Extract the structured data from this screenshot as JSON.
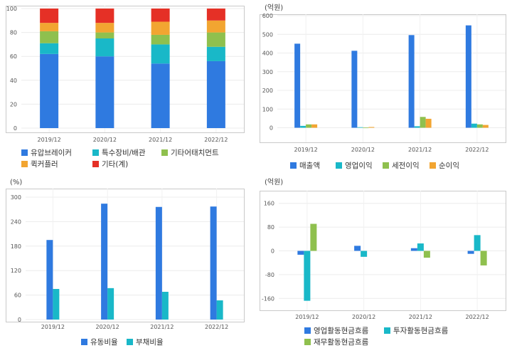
{
  "chart_data": [
    {
      "type": "bar",
      "stacked": true,
      "unit": "",
      "categories": [
        "2019/12",
        "2020/12",
        "2021/12",
        "2022/12"
      ],
      "ylim": [
        0,
        100
      ],
      "yticks": [
        0,
        20,
        40,
        60,
        80,
        100
      ],
      "grid": true,
      "legend_position": "bottom",
      "series": [
        {
          "name": "유압브레이커",
          "color": "#2f7ae0",
          "values": [
            62,
            60,
            54,
            56
          ]
        },
        {
          "name": "특수장비/배관",
          "color": "#19b8c8",
          "values": [
            9,
            15,
            16,
            12
          ]
        },
        {
          "name": "기타어태치먼트",
          "color": "#8fc04e",
          "values": [
            10,
            5,
            8,
            12
          ]
        },
        {
          "name": "퀵커플러",
          "color": "#f2a531",
          "values": [
            7,
            8,
            11,
            10
          ]
        },
        {
          "name": "기타(계)",
          "color": "#e53026",
          "values": [
            12,
            12,
            11,
            10
          ]
        }
      ]
    },
    {
      "type": "bar",
      "unit": "(억원)",
      "categories": [
        "2019/12",
        "2020/12",
        "2021/12",
        "2022/12"
      ],
      "ylim": [
        -40,
        600
      ],
      "yticks": [
        0,
        100,
        200,
        300,
        400,
        500,
        600
      ],
      "grid": true,
      "legend_position": "bottom",
      "series": [
        {
          "name": "매출액",
          "color": "#2f7ae0",
          "values": [
            450,
            412,
            496,
            548
          ]
        },
        {
          "name": "영업이익",
          "color": "#19b8c8",
          "values": [
            10,
            3,
            8,
            22
          ]
        },
        {
          "name": "세전이익",
          "color": "#8fc04e",
          "values": [
            18,
            1,
            58,
            18
          ]
        },
        {
          "name": "순이익",
          "color": "#f2a531",
          "values": [
            18,
            4,
            48,
            15
          ]
        }
      ]
    },
    {
      "type": "bar",
      "unit": "(%)",
      "categories": [
        "2019/12",
        "2020/12",
        "2021/12",
        "2022/12"
      ],
      "ylim": [
        0,
        300
      ],
      "yticks": [
        0,
        60,
        120,
        180,
        240,
        300
      ],
      "grid": true,
      "legend_position": "bottom",
      "series": [
        {
          "name": "유동비율",
          "color": "#2f7ae0",
          "values": [
            195,
            284,
            276,
            277
          ]
        },
        {
          "name": "부채비율",
          "color": "#19b8c8",
          "values": [
            75,
            77,
            68,
            47
          ]
        }
      ]
    },
    {
      "type": "bar",
      "unit": "(억원)",
      "categories": [
        "2019/12",
        "2020/12",
        "2021/12",
        "2022/12"
      ],
      "ylim": [
        -200,
        200
      ],
      "yticks": [
        -160,
        -80,
        0,
        80,
        160
      ],
      "grid": true,
      "legend_position": "bottom",
      "series": [
        {
          "name": "영업활동현금흐름",
          "color": "#2f7ae0",
          "values": [
            -13,
            17,
            9,
            -10
          ]
        },
        {
          "name": "투자활동현금흐름",
          "color": "#19b8c8",
          "values": [
            -168,
            -20,
            25,
            53
          ]
        },
        {
          "name": "재무활동현금흐름",
          "color": "#8fc04e",
          "values": [
            91,
            0,
            -23,
            -49
          ]
        }
      ]
    }
  ]
}
